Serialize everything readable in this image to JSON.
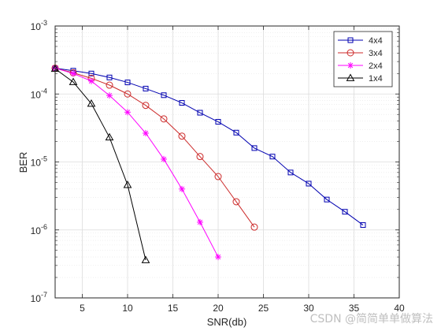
{
  "chart_data": {
    "type": "line",
    "title": "",
    "xlabel": "SNR(db)",
    "ylabel": "BER",
    "xlim": [
      2,
      40
    ],
    "ylim": [
      1e-07,
      0.001
    ],
    "yscale": "log",
    "grid": true,
    "minor_grid": true,
    "legend_position": "top-right",
    "x_ticks": [
      5,
      10,
      15,
      20,
      25,
      30,
      35,
      40
    ],
    "x_tick_labels": [
      "5",
      "10",
      "15",
      "20",
      "25",
      "30",
      "35",
      "40"
    ],
    "y_ticks": [
      1e-07,
      1e-06,
      1e-05,
      0.0001,
      0.001
    ],
    "y_tick_bases": [
      "10",
      "10",
      "10",
      "10",
      "10"
    ],
    "y_tick_exponents": [
      "-7",
      "-6",
      "-5",
      "-4",
      "-3"
    ],
    "series": [
      {
        "name": "4x4",
        "color": "#0000b0",
        "marker": "square",
        "x": [
          2,
          4,
          6,
          8,
          10,
          12,
          14,
          16,
          18,
          20,
          22,
          24,
          26,
          28,
          30,
          32,
          34,
          36
        ],
        "y": [
          0.00024,
          0.00022,
          0.0002,
          0.000175,
          0.000148,
          0.00012,
          9.6e-05,
          7.4e-05,
          5.3e-05,
          3.9e-05,
          2.7e-05,
          1.6e-05,
          1.2e-05,
          7e-06,
          4.8e-06,
          2.8e-06,
          1.85e-06,
          1.18e-06
        ]
      },
      {
        "name": "3x4",
        "color": "#cc2a2a",
        "marker": "circle",
        "x": [
          2,
          4,
          6,
          8,
          10,
          12,
          14,
          16,
          18,
          20,
          22,
          24
        ],
        "y": [
          0.00024,
          0.000205,
          0.00017,
          0.000135,
          0.0001,
          6.8e-05,
          4.3e-05,
          2.4e-05,
          1.2e-05,
          6.1e-06,
          2.6e-06,
          1.1e-06
        ]
      },
      {
        "name": "2x4",
        "color": "#ff00ff",
        "marker": "asterisk",
        "x": [
          2,
          4,
          6,
          8,
          10,
          12,
          14,
          16,
          18,
          20
        ],
        "y": [
          0.00024,
          0.0002,
          0.000155,
          9.5e-05,
          5.4e-05,
          2.65e-05,
          1.1e-05,
          4e-06,
          1.3e-06,
          4e-07
        ]
      },
      {
        "name": "1x4",
        "color": "#000000",
        "marker": "triangle",
        "x": [
          2,
          4,
          6,
          8,
          10,
          12
        ],
        "y": [
          0.000235,
          0.00015,
          7.2e-05,
          2.3e-05,
          4.6e-06,
          3.6e-07
        ]
      }
    ]
  },
  "watermark": {
    "text": "CSDN @简简单单做算法"
  }
}
